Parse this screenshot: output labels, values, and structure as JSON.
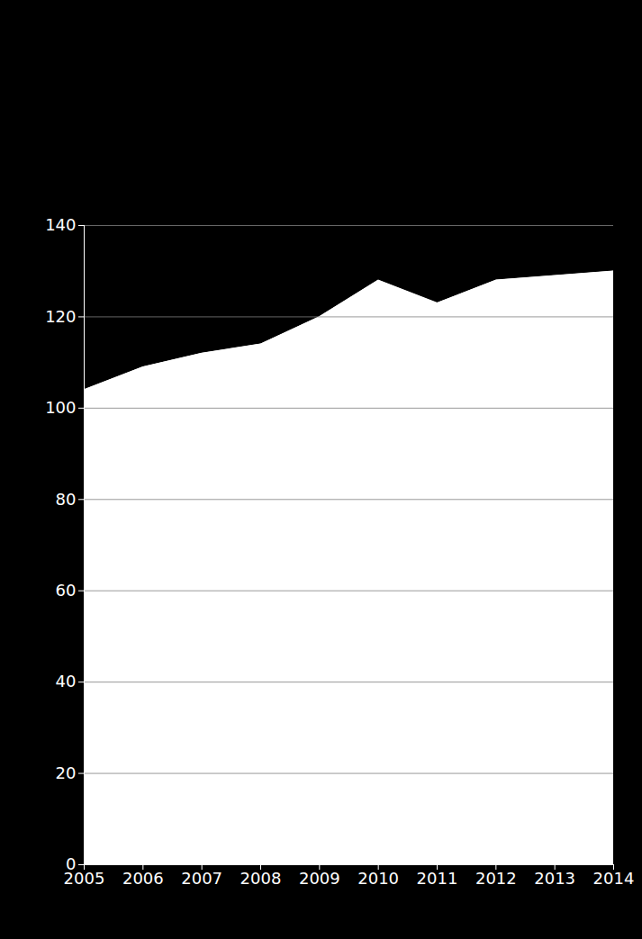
{
  "chart_data": {
    "type": "area",
    "x": [
      2005,
      2006,
      2007,
      2008,
      2009,
      2010,
      2011,
      2012,
      2013,
      2014
    ],
    "values": [
      104,
      109,
      112,
      114,
      120,
      128,
      123,
      128,
      129,
      130
    ],
    "color": "#ffffff",
    "xlim": [
      2005,
      2014
    ],
    "xticks": [
      2005,
      2006,
      2007,
      2008,
      2009,
      2010,
      2011,
      2012,
      2013,
      2014
    ],
    "ylim": [
      0,
      140
    ],
    "yticks": [
      0,
      20,
      40,
      60,
      80,
      100,
      120,
      140
    ],
    "grid": true
  }
}
